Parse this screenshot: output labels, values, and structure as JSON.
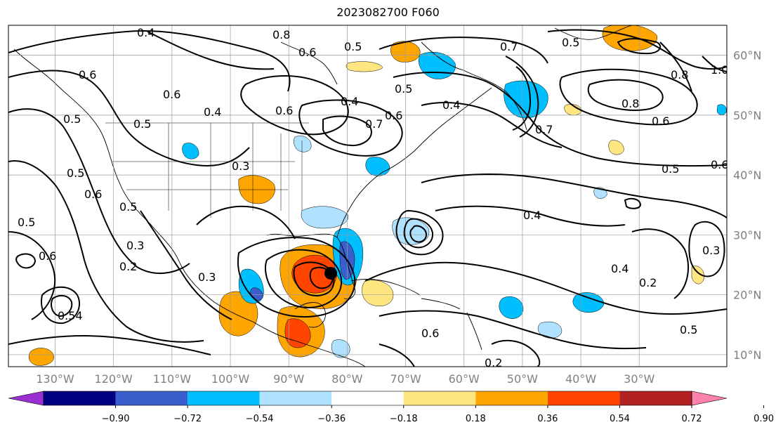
{
  "title": "2023082700 F060",
  "map": {
    "lon_range": [
      -138,
      -15
    ],
    "lat_range": [
      8,
      65
    ],
    "lat_labels": [
      "10°N",
      "20°N",
      "30°N",
      "40°N",
      "50°N",
      "60°N"
    ],
    "lat_values": [
      10,
      20,
      30,
      40,
      50,
      60
    ],
    "lon_labels": [
      "130°W",
      "120°W",
      "110°W",
      "100°W",
      "90°W",
      "80°W",
      "70°W",
      "60°W",
      "50°W",
      "40°W",
      "30°W"
    ],
    "lon_values": [
      -130,
      -120,
      -110,
      -100,
      -90,
      -80,
      -70,
      -60,
      -50,
      -40,
      -30
    ],
    "gridlines": true,
    "contour_labels": [
      "0.4",
      "0.8",
      "0.6",
      "0.5",
      "0.7",
      "0.5",
      "0.6",
      "0.5",
      "0.6",
      "0.4",
      "0.5",
      "0.6",
      "0.7",
      "0.6",
      "0.5",
      "0.4",
      "0.3",
      "0.5",
      "0.6",
      "0.5",
      "0.3",
      "0.2",
      "0.5",
      "0.6",
      "0.54",
      "0.4",
      "0.7",
      "1.0",
      "0.8",
      "0.8",
      "0.6",
      "0.5",
      "0.6",
      "0.4",
      "0.4",
      "0.2",
      "0.3",
      "0.5",
      "0.2",
      "0.6",
      "0.3"
    ]
  },
  "colorbar": {
    "ticks": [
      "−0.90",
      "−0.72",
      "−0.54",
      "−0.36",
      "−0.18",
      "0.18",
      "0.36",
      "0.54",
      "0.72",
      "0.90"
    ],
    "colors": [
      "#9b30d0",
      "#000080",
      "#3a5fcd",
      "#00bfff",
      "#b0e2ff",
      "#ffffff",
      "#ffe680",
      "#ffa500",
      "#ff4500",
      "#b22222",
      "#ff82ab"
    ],
    "extend": "both"
  }
}
